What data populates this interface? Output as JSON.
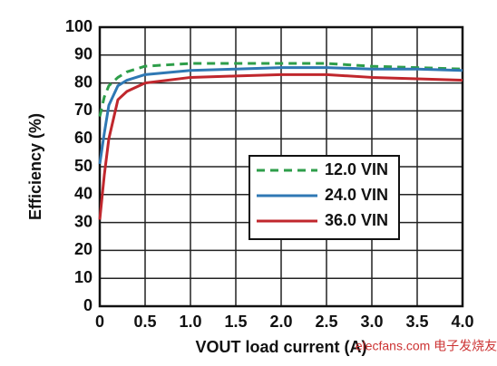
{
  "chart_data": {
    "type": "line",
    "y_label": "Efficiency (%)",
    "x_label": "VOUT load current (A)",
    "watermark": "elecfans.com 电子发烧友",
    "x": [
      0,
      0.05,
      0.1,
      0.2,
      0.3,
      0.5,
      1.0,
      1.5,
      2.0,
      2.5,
      3.0,
      3.5,
      4.0
    ],
    "series": [
      {
        "name": "12.0 VIN",
        "color": "#2e9e4a",
        "style": "dashed",
        "values": [
          68,
          75,
          79,
          82,
          84,
          86,
          87,
          87,
          87,
          87,
          86,
          85.5,
          85
        ]
      },
      {
        "name": "24.0 VIN",
        "color": "#2f78b4",
        "style": "solid",
        "values": [
          51,
          62,
          72,
          79,
          81,
          83,
          84.5,
          85,
          85.5,
          85.5,
          85,
          85,
          84.5
        ]
      },
      {
        "name": "36.0 VIN",
        "color": "#c0272d",
        "style": "solid",
        "values": [
          31,
          47,
          60,
          74,
          77,
          80,
          82,
          82.5,
          83,
          83,
          82,
          81.5,
          81
        ]
      }
    ],
    "xlim": [
      0,
      4.0
    ],
    "ylim": [
      0,
      100
    ],
    "xticks": [
      0,
      0.5,
      {
        "value": 1.0,
        "label": "1.0"
      },
      1.5,
      {
        "value": 2.0,
        "label": "2.0"
      },
      2.5,
      {
        "value": 3.0,
        "label": "3.0"
      },
      3.5,
      {
        "value": 4.0,
        "label": "4.0"
      }
    ],
    "yticks": [
      0,
      10,
      20,
      30,
      40,
      50,
      60,
      70,
      80,
      90,
      100
    ],
    "grid": true
  }
}
